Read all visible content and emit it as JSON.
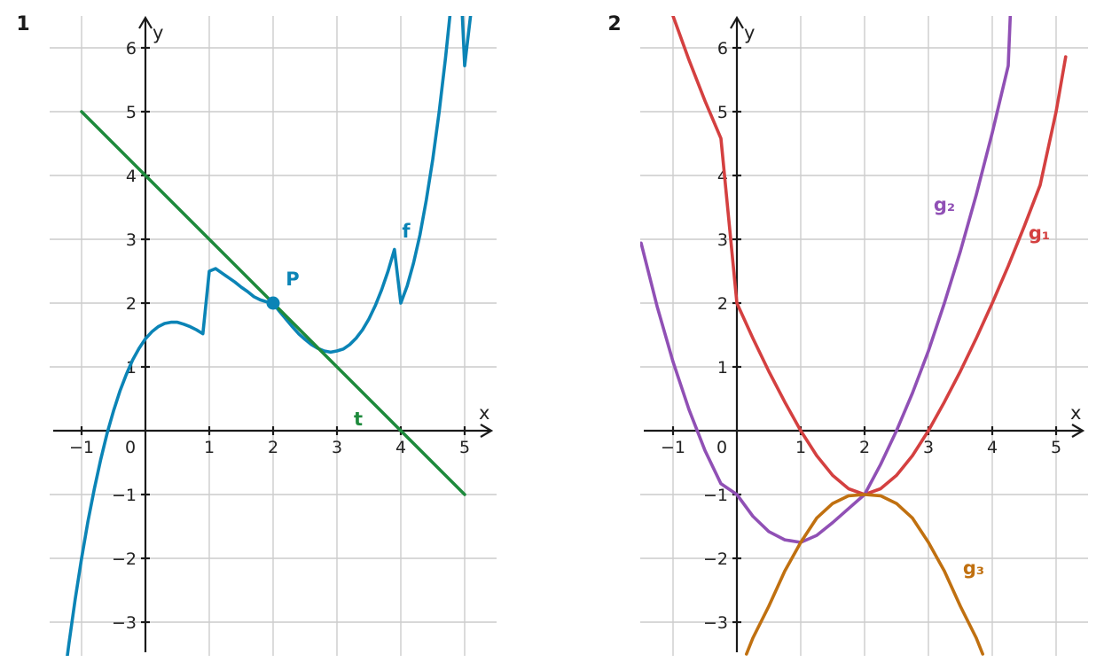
{
  "chart_data": [
    {
      "type": "line",
      "panel_label": "1",
      "xlabel": "x",
      "ylabel": "y",
      "xlim": [
        -1.5,
        5.5
      ],
      "ylim": [
        -3.5,
        6.5
      ],
      "xticks": [
        -1,
        1,
        2,
        3,
        4,
        5
      ],
      "xtick_labels": [
        "−1",
        "1",
        "2",
        "3",
        "4",
        "5"
      ],
      "yticks": [
        -3,
        -2,
        -1,
        1,
        2,
        3,
        4,
        5,
        6
      ],
      "ytick_labels": [
        "−3",
        "−2",
        "−1",
        "1",
        "2",
        "3",
        "4",
        "5",
        "6"
      ],
      "origin_label": "0",
      "grid": true,
      "series": [
        {
          "name": "f",
          "color": "#0b84b6",
          "x": [
            -1.3,
            -1.2,
            -1.1,
            -1.0,
            -0.9,
            -0.8,
            -0.7,
            -0.6,
            -0.5,
            -0.4,
            -0.3,
            -0.2,
            -0.1,
            0.0,
            0.1,
            0.2,
            0.3,
            0.4,
            0.5,
            0.6,
            0.7,
            0.8,
            0.9,
            1.0,
            1.1,
            1.2,
            1.3,
            1.4,
            1.5,
            1.6,
            1.7,
            1.8,
            1.9,
            2.0,
            2.1,
            2.2,
            2.3,
            2.4,
            2.5,
            2.6,
            2.7,
            2.8,
            2.9,
            3.0,
            3.1,
            3.2,
            3.3,
            3.4,
            3.5,
            3.6,
            3.7,
            3.8,
            3.9,
            4.0,
            4.1,
            4.2,
            4.3,
            4.4,
            4.5,
            4.6,
            4.7,
            4.8,
            4.9,
            5.0,
            5.1
          ],
          "y": [
            -4.13,
            -3.35,
            -2.64,
            -2.0,
            -1.42,
            -0.91,
            -0.45,
            -0.04,
            0.31,
            0.62,
            0.88,
            1.11,
            1.29,
            1.44,
            1.55,
            1.63,
            1.68,
            1.7,
            1.7,
            1.67,
            1.63,
            1.58,
            1.52,
            2.5,
            2.54,
            2.47,
            2.4,
            2.33,
            2.25,
            2.18,
            2.1,
            2.05,
            2.02,
            2.0,
            1.87,
            1.75,
            1.63,
            1.52,
            1.43,
            1.35,
            1.29,
            1.25,
            1.23,
            1.25,
            1.28,
            1.35,
            1.45,
            1.58,
            1.75,
            1.96,
            2.21,
            2.5,
            2.84,
            2.0,
            2.27,
            2.63,
            3.07,
            3.62,
            4.25,
            4.99,
            5.84,
            6.8,
            7.87,
            5.72,
            6.57
          ]
        },
        {
          "name": "t",
          "color": "#1e8a3c",
          "x": [
            -1,
            5
          ],
          "y": [
            5,
            -1
          ]
        }
      ],
      "points": [
        {
          "name": "P",
          "x": 2,
          "y": 2,
          "color": "#0b84b6"
        }
      ]
    },
    {
      "type": "line",
      "panel_label": "2",
      "xlabel": "x",
      "ylabel": "y",
      "xlim": [
        -1.5,
        5.5
      ],
      "ylim": [
        -3.5,
        6.5
      ],
      "xticks": [
        -1,
        1,
        2,
        3,
        4,
        5
      ],
      "xtick_labels": [
        "−1",
        "1",
        "2",
        "3",
        "4",
        "5"
      ],
      "yticks": [
        -3,
        -2,
        -1,
        1,
        2,
        3,
        4,
        5,
        6
      ],
      "ytick_labels": [
        "−3",
        "−2",
        "−1",
        "1",
        "2",
        "3",
        "4",
        "5",
        "6"
      ],
      "origin_label": "0",
      "grid": true,
      "series": [
        {
          "name": "g₁",
          "color": "#d44040",
          "x": [
            -1.15,
            -1.0,
            -0.75,
            -0.5,
            -0.25,
            0.0,
            0.25,
            0.5,
            0.75,
            1.0,
            1.25,
            1.5,
            1.75,
            2.0,
            2.25,
            2.5,
            2.75,
            3.0,
            3.25,
            3.5,
            3.75,
            4.0,
            4.25,
            4.5,
            4.75,
            5.0,
            5.15
          ],
          "y": [
            6.94,
            6.5,
            5.81,
            5.17,
            4.58,
            2.0,
            1.45,
            0.93,
            0.45,
            0.0,
            -0.39,
            -0.7,
            -0.91,
            -1.0,
            -0.91,
            -0.7,
            -0.39,
            0.0,
            0.45,
            0.93,
            1.45,
            2.0,
            2.58,
            3.2,
            3.85,
            5.0,
            5.86
          ]
        },
        {
          "name": "g₂",
          "color": "#9050b5",
          "x": [
            -1.5,
            -1.25,
            -1.0,
            -0.75,
            -0.5,
            -0.25,
            0.0,
            0.25,
            0.5,
            0.75,
            1.0,
            1.25,
            1.5,
            1.75,
            2.0,
            2.25,
            2.5,
            2.75,
            3.0,
            3.25,
            3.5,
            3.75,
            4.0,
            4.25,
            4.3
          ],
          "y": [
            2.94,
            1.95,
            1.08,
            0.33,
            -0.31,
            -0.83,
            -1.0,
            -1.34,
            -1.58,
            -1.71,
            -1.75,
            -1.64,
            -1.44,
            -1.22,
            -1.0,
            -0.53,
            0.0,
            0.59,
            1.25,
            2.0,
            2.81,
            3.7,
            4.67,
            5.72,
            6.94
          ]
        },
        {
          "name": "g₃",
          "color": "#c07010",
          "x": [
            0.15,
            0.25,
            0.5,
            0.75,
            1.0,
            1.25,
            1.5,
            1.75,
            2.0,
            2.25,
            2.5,
            2.75,
            3.0,
            3.25,
            3.5,
            3.75,
            3.85
          ],
          "y": [
            -3.5,
            -3.25,
            -2.75,
            -2.2,
            -1.75,
            -1.37,
            -1.14,
            -1.02,
            -1.0,
            -1.02,
            -1.14,
            -1.37,
            -1.75,
            -2.2,
            -2.75,
            -3.25,
            -3.5
          ]
        }
      ]
    }
  ]
}
